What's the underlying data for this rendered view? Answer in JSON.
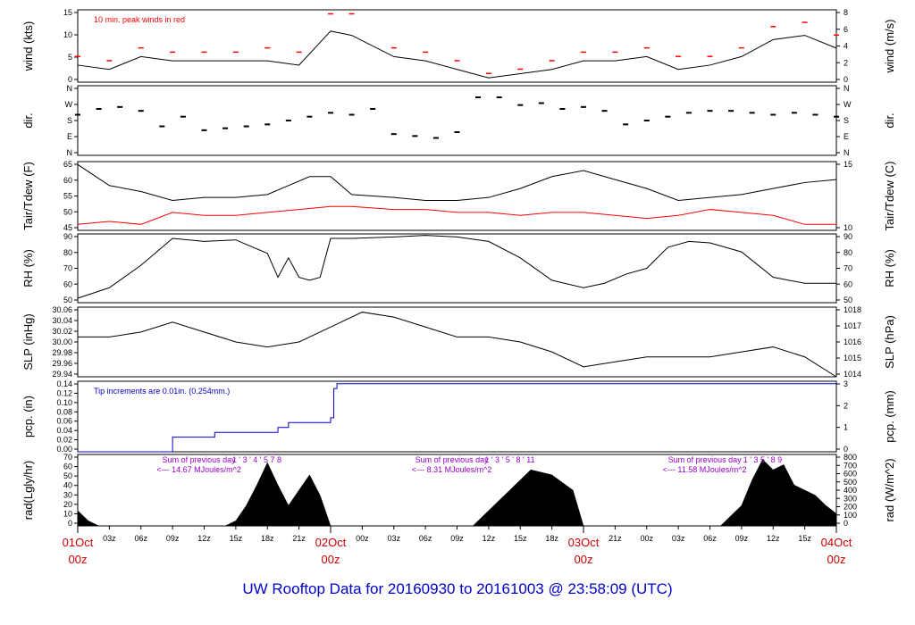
{
  "title": "UW Rooftop Data for 20160930  to  20161003 @ 23:58:09  (UTC)",
  "colors": {
    "axis": "#000000",
    "wind": "#000000",
    "peak": "#ff0000",
    "tair": "#000000",
    "tdew": "#ff0000",
    "precip": "#0000cc",
    "annot": "#9900cc",
    "time_major": "#cc0000",
    "title": "#0000cc"
  },
  "time_axis": {
    "minor_ticks": [
      "03z",
      "06z",
      "09z",
      "12z",
      "15z",
      "18z",
      "21z",
      "00z",
      "03z",
      "06z",
      "09z",
      "12z",
      "15z",
      "18z",
      "21z",
      "00z",
      "03z",
      "06z",
      "09z",
      "12z",
      "15z",
      "18z",
      "21z"
    ],
    "major": [
      {
        "date": "01Oct",
        "hour": "00z"
      },
      {
        "date": "02Oct",
        "hour": "00z"
      },
      {
        "date": "03Oct",
        "hour": "00z"
      },
      {
        "date": "04Oct",
        "hour": "00z"
      }
    ]
  },
  "chart_data": [
    {
      "type": "line",
      "id": "wind",
      "ylabel": "wind (kts)",
      "ylabel_right": "wind (m/s)",
      "left_ticks": [
        "0",
        "5",
        "10",
        "15"
      ],
      "right_ticks": [
        "0",
        "2",
        "4",
        "6",
        "8"
      ],
      "annotation": "10 min. peak winds in red",
      "ylim": [
        0,
        17
      ],
      "series": [
        {
          "kind": "wind",
          "x": [
            0,
            3,
            6,
            9,
            12,
            15,
            18,
            21,
            24,
            26,
            30,
            33,
            36,
            39,
            42,
            45,
            48,
            51,
            54,
            57,
            60,
            63,
            66,
            69,
            72
          ],
          "y": [
            4,
            3,
            6,
            5,
            5,
            5,
            5,
            4,
            12,
            11,
            6,
            5,
            3,
            1,
            2,
            3,
            5,
            5,
            6,
            3,
            4,
            6,
            10,
            11,
            8
          ]
        },
        {
          "kind": "peak",
          "x": [
            0,
            3,
            6,
            9,
            12,
            15,
            18,
            21,
            24,
            26,
            30,
            33,
            36,
            39,
            42,
            45,
            48,
            51,
            54,
            57,
            60,
            63,
            66,
            69,
            72
          ],
          "y": [
            6,
            5,
            8,
            7,
            7,
            7,
            8,
            7,
            16,
            16,
            8,
            7,
            5,
            2,
            3,
            5,
            7,
            7,
            8,
            6,
            6,
            8,
            13,
            14,
            11
          ]
        }
      ]
    },
    {
      "type": "scatter",
      "id": "dir",
      "ylabel": "dir.",
      "ylabel_right": "dir.",
      "left_ticks": [
        "N",
        "E",
        "S",
        "W",
        "N"
      ],
      "right_ticks": [
        "N",
        "E",
        "S",
        "W",
        "N"
      ],
      "ylim": [
        0,
        360
      ],
      "series": [
        {
          "kind": "direction",
          "x": [
            0,
            2,
            4,
            6,
            8,
            10,
            12,
            14,
            16,
            18,
            20,
            22,
            24,
            26,
            28,
            30,
            32,
            34,
            36,
            38,
            40,
            42,
            44,
            46,
            48,
            50,
            52,
            54,
            56,
            58,
            60,
            62,
            64,
            66,
            68,
            70,
            72
          ],
          "y": [
            210,
            240,
            250,
            230,
            150,
            200,
            130,
            140,
            150,
            160,
            180,
            200,
            220,
            210,
            240,
            110,
            100,
            90,
            120,
            300,
            300,
            260,
            270,
            240,
            250,
            230,
            160,
            180,
            200,
            220,
            230,
            230,
            220,
            210,
            220,
            210,
            200
          ]
        }
      ]
    },
    {
      "type": "line",
      "id": "temp",
      "ylabel": "Tair/Tdew (F)",
      "ylabel_right": "Tair/Tdew (C)",
      "left_ticks": [
        "45",
        "50",
        "55",
        "60",
        "65"
      ],
      "right_ticks": [
        "10",
        "15"
      ],
      "ylim": [
        43,
        66
      ],
      "series": [
        {
          "kind": "tair",
          "x": [
            0,
            3,
            6,
            9,
            12,
            15,
            18,
            20,
            22,
            24,
            26,
            30,
            33,
            36,
            39,
            42,
            45,
            48,
            51,
            54,
            57,
            60,
            63,
            66,
            69,
            72
          ],
          "y": [
            65,
            58,
            56,
            53,
            54,
            54,
            55,
            58,
            61,
            61,
            55,
            54,
            53,
            53,
            54,
            57,
            61,
            63,
            60,
            57,
            53,
            54,
            55,
            57,
            59,
            60
          ]
        },
        {
          "kind": "tdew",
          "x": [
            0,
            3,
            6,
            9,
            12,
            15,
            18,
            21,
            24,
            26,
            30,
            33,
            36,
            39,
            42,
            45,
            48,
            51,
            54,
            57,
            60,
            63,
            66,
            69,
            72
          ],
          "y": [
            45,
            46,
            45,
            49,
            48,
            48,
            49,
            50,
            51,
            51,
            50,
            50,
            49,
            49,
            48,
            49,
            49,
            48,
            47,
            48,
            50,
            49,
            48,
            45,
            45
          ]
        }
      ]
    },
    {
      "type": "line",
      "id": "rh",
      "ylabel": "RH (%)",
      "ylabel_right": "RH (%)",
      "left_ticks": [
        "50",
        "60",
        "70",
        "80",
        "90"
      ],
      "right_ticks": [
        "50",
        "60",
        "70",
        "80",
        "90"
      ],
      "ylim": [
        45,
        91
      ],
      "series": [
        {
          "kind": "rh",
          "x": [
            0,
            3,
            6,
            9,
            12,
            15,
            18,
            19,
            20,
            21,
            22,
            23,
            24,
            26,
            30,
            33,
            36,
            39,
            42,
            45,
            48,
            50,
            52,
            54,
            56,
            58,
            60,
            63,
            66,
            69,
            72
          ],
          "y": [
            48,
            55,
            70,
            88,
            86,
            87,
            78,
            62,
            75,
            62,
            60,
            62,
            88,
            88,
            89,
            90,
            89,
            86,
            75,
            60,
            55,
            58,
            64,
            68,
            82,
            86,
            85,
            79,
            62,
            58,
            58
          ]
        }
      ]
    },
    {
      "type": "line",
      "id": "slp",
      "ylabel": "SLP (inHg)",
      "ylabel_right": "SLP (hPa)",
      "left_ticks": [
        "29.94",
        "29.96",
        "29.98",
        "30.00",
        "30.02",
        "30.04",
        "30.06"
      ],
      "right_ticks": [
        "1014",
        "1015",
        "1016",
        "1017",
        "1018"
      ],
      "ylim": [
        29.93,
        30.07
      ],
      "series": [
        {
          "kind": "slp",
          "x": [
            0,
            3,
            6,
            9,
            12,
            15,
            18,
            21,
            24,
            27,
            30,
            33,
            36,
            39,
            42,
            45,
            48,
            51,
            54,
            57,
            60,
            63,
            66,
            69,
            72
          ],
          "y": [
            30.01,
            30.01,
            30.02,
            30.04,
            30.02,
            30.0,
            29.99,
            30.0,
            30.03,
            30.06,
            30.05,
            30.03,
            30.01,
            30.01,
            30.0,
            29.98,
            29.95,
            29.96,
            29.97,
            29.97,
            29.97,
            29.98,
            29.99,
            29.97,
            29.93
          ]
        }
      ]
    },
    {
      "type": "area",
      "id": "pcp",
      "ylabel": "pcp. (in)",
      "ylabel_right": "pcp. (mm)",
      "left_ticks": [
        "0.00",
        "0.02",
        "0.04",
        "0.06",
        "0.08",
        "0.10",
        "0.12",
        "0.14"
      ],
      "right_ticks": [
        "0",
        "1",
        "2",
        "3"
      ],
      "annotation": "Tip increments are 0.01in. (0.254mm.)",
      "ylim": [
        0,
        0.145
      ],
      "series": [
        {
          "kind": "precip",
          "x": [
            0,
            8,
            9,
            12,
            13,
            16,
            19,
            20,
            21,
            22,
            23,
            24,
            24.3,
            24.6,
            72
          ],
          "y": [
            0,
            0,
            0.03,
            0.03,
            0.04,
            0.04,
            0.05,
            0.06,
            0.06,
            0.06,
            0.06,
            0.07,
            0.13,
            0.14,
            0.14
          ]
        }
      ]
    },
    {
      "type": "area",
      "id": "rad",
      "ylabel": "rad(Lgly/hr)",
      "ylabel_right": "rad (W/m^2)",
      "left_ticks": [
        "0",
        "10",
        "20",
        "30",
        "40",
        "50",
        "60",
        "70"
      ],
      "right_ticks": [
        "0",
        "100",
        "200",
        "300",
        "400",
        "500",
        "600",
        "700",
        "800"
      ],
      "ylim": [
        0,
        70
      ],
      "annotations": [
        {
          "x": 11.5,
          "line1": "Sum of previous day",
          "line2": "<--- 14.67 MJoules/m^2"
        },
        {
          "x": 35.5,
          "line1": "Sum of previous day",
          "line2": "<--- 8.31 MJoules/m^2"
        },
        {
          "x": 59.5,
          "line1": "Sum of previous day",
          "line2": "<--- 11.58 MJoules/m^2"
        }
      ],
      "markers": [
        {
          "x": 17,
          "labels": "1  '  3  '  4  '  5  7  8"
        },
        {
          "x": 41,
          "labels": "1  '  3  '  5  '  8  '  11"
        },
        {
          "x": 65,
          "labels": "1  '  3  5  '  8  9"
        }
      ],
      "series": [
        {
          "kind": "rad",
          "x": [
            0,
            1,
            2,
            14,
            15,
            16,
            17,
            18,
            19,
            20,
            21,
            22,
            23,
            24,
            37.5,
            39,
            41,
            43,
            45,
            47,
            48,
            61,
            62,
            63,
            64,
            65,
            66,
            67,
            68,
            69,
            70,
            71,
            72
          ],
          "y": [
            15,
            5,
            0,
            0,
            5,
            20,
            40,
            62,
            40,
            20,
            35,
            50,
            30,
            0,
            0,
            15,
            35,
            55,
            50,
            35,
            0,
            0,
            10,
            20,
            45,
            65,
            55,
            60,
            40,
            35,
            30,
            20,
            12
          ]
        }
      ]
    }
  ]
}
